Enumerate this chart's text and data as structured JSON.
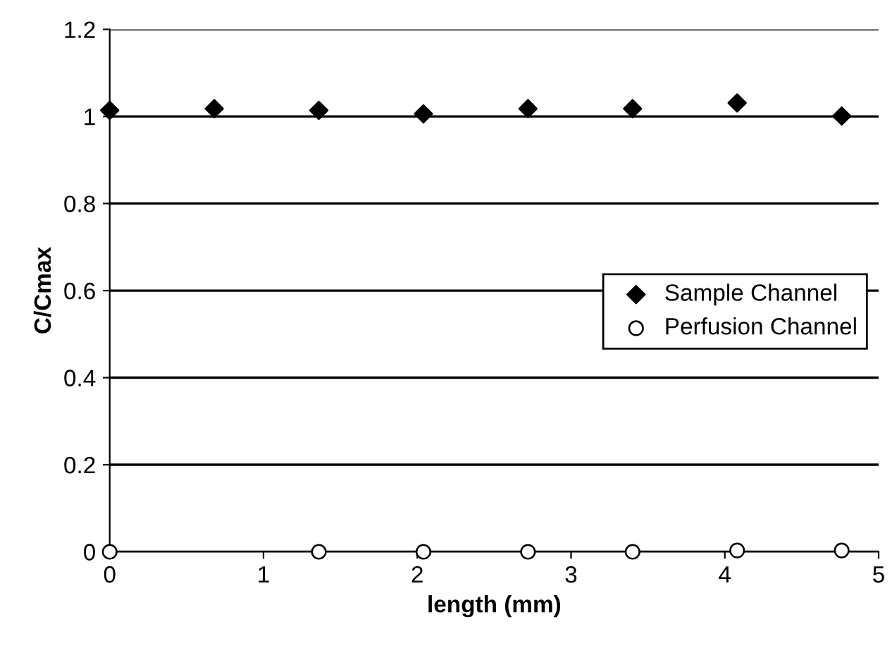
{
  "chart_data": {
    "type": "scatter",
    "xlabel": "length (mm)",
    "ylabel": "C/Cmax",
    "xlim": [
      0,
      5
    ],
    "xticks": [
      0,
      1,
      2,
      3,
      4,
      5
    ],
    "ylim": [
      0,
      1.2
    ],
    "yticks": [
      0,
      0.2,
      0.4,
      0.6,
      0.8,
      1,
      1.2
    ],
    "grid": "y",
    "legend": "right",
    "series": [
      {
        "name": "Sample Channel",
        "color": "#000000",
        "marker": "diamond",
        "x": [
          0,
          0.68,
          1.36,
          2.04,
          2.72,
          3.4,
          4.08,
          4.76
        ],
        "values": [
          1.014,
          1.018,
          1.014,
          1.006,
          1.018,
          1.018,
          1.031,
          1.001
        ]
      },
      {
        "name": "Perfusion Channel",
        "color": "#000000",
        "marker": "circle",
        "x": [
          0,
          1.36,
          2.04,
          2.72,
          3.4,
          4.08,
          4.76
        ],
        "values": [
          0,
          0,
          0,
          0,
          0,
          0.003,
          0.003
        ]
      }
    ]
  }
}
